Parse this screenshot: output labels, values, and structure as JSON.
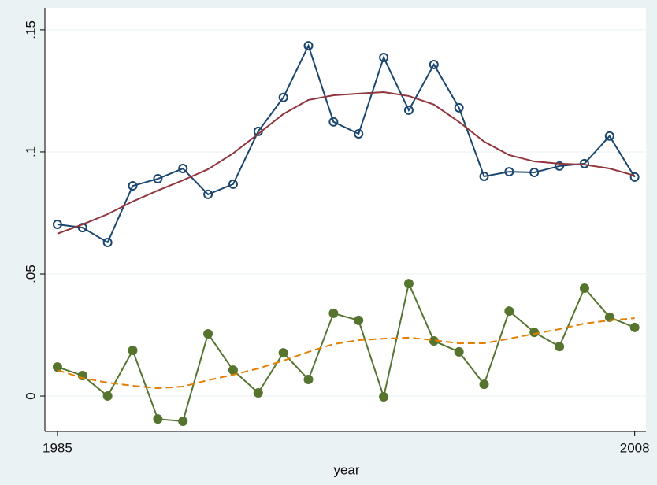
{
  "chart_data": {
    "type": "line",
    "x_label": "year",
    "x": [
      1985,
      1986,
      1987,
      1988,
      1989,
      1990,
      1991,
      1992,
      1993,
      1994,
      1995,
      1996,
      1997,
      1998,
      1999,
      2000,
      2001,
      2002,
      2003,
      2004,
      2005,
      2006,
      2007,
      2008
    ],
    "xlim": [
      1984.5,
      2008.45
    ],
    "xticks": [
      1985,
      2008
    ],
    "ylim": [
      -0.0145,
      0.159
    ],
    "yticks": [
      0,
      {
        "value": 0.05,
        "label": ".05"
      },
      {
        "value": 0.1,
        "label": ".1"
      },
      {
        "value": 0.15,
        "label": ".15"
      }
    ],
    "grid": true,
    "series": [
      {
        "color": "#1a476f",
        "style": "solid",
        "marker": "hollow-circle",
        "values": [
          0.0703,
          0.069,
          0.0629,
          0.0861,
          0.089,
          0.0932,
          0.0826,
          0.0868,
          0.1084,
          0.1223,
          0.1435,
          0.1123,
          0.1074,
          0.1387,
          0.1171,
          0.1358,
          0.1181,
          0.09,
          0.0919,
          0.0916,
          0.0942,
          0.0952,
          0.1065,
          0.0897
        ]
      },
      {
        "color": "#90353b",
        "style": "solid",
        "marker": "none",
        "values": [
          0.0665,
          0.0703,
          0.0745,
          0.0797,
          0.0842,
          0.0884,
          0.0929,
          0.0994,
          0.1074,
          0.1155,
          0.1213,
          0.1232,
          0.1239,
          0.1245,
          0.1229,
          0.1194,
          0.1123,
          0.1042,
          0.0987,
          0.0961,
          0.0952,
          0.0948,
          0.0932,
          0.0903
        ]
      },
      {
        "color": "#55752f",
        "style": "solid",
        "marker": "filled-circle",
        "values": [
          0.0119,
          0.0084,
          0,
          0.0187,
          -0.0094,
          -0.0103,
          0.0255,
          0.0106,
          0.0013,
          0.0177,
          0.0068,
          0.0339,
          0.031,
          -0.0003,
          0.0461,
          0.0226,
          0.0181,
          0.0048,
          0.0348,
          0.0261,
          0.0203,
          0.0442,
          0.0323,
          0.0281
        ]
      },
      {
        "color": "#e37e00",
        "style": "dashed",
        "marker": "none",
        "values": [
          0.0106,
          0.0074,
          0.0055,
          0.0042,
          0.0032,
          0.0039,
          0.0065,
          0.0087,
          0.0113,
          0.0145,
          0.0181,
          0.0213,
          0.0229,
          0.0235,
          0.0239,
          0.0229,
          0.0216,
          0.0216,
          0.0235,
          0.0255,
          0.0274,
          0.0297,
          0.031,
          0.0319
        ]
      }
    ]
  }
}
